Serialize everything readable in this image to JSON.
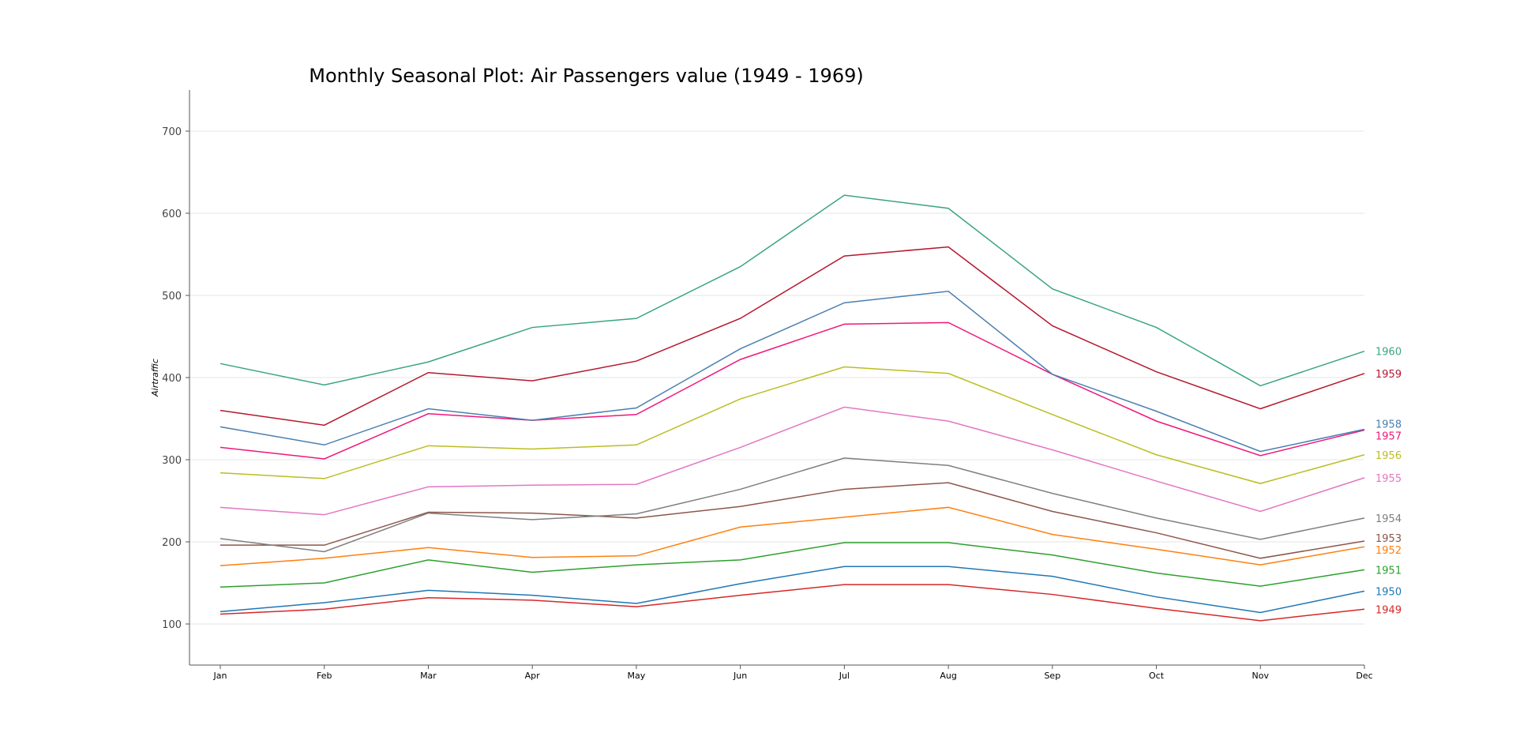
{
  "chart_data": {
    "type": "line",
    "title": "Monthly Seasonal Plot: Air Passengers value (1949 - 1969)",
    "xlabel": "",
    "ylabel": "Airtraffic",
    "categories": [
      "Jan",
      "Feb",
      "Mar",
      "Apr",
      "May",
      "Jun",
      "Jul",
      "Aug",
      "Sep",
      "Oct",
      "Nov",
      "Dec"
    ],
    "ylim": [
      50,
      750
    ],
    "yticks": [
      100,
      200,
      300,
      400,
      500,
      600,
      700
    ],
    "grid": "horizontal",
    "legend": "line-end labels on right",
    "series": [
      {
        "name": "1949",
        "color": "#d62728",
        "values": [
          112,
          118,
          132,
          129,
          121,
          135,
          148,
          148,
          136,
          119,
          104,
          118
        ]
      },
      {
        "name": "1950",
        "color": "#1f77b4",
        "values": [
          115,
          126,
          141,
          135,
          125,
          149,
          170,
          170,
          158,
          133,
          114,
          140
        ]
      },
      {
        "name": "1951",
        "color": "#2ca02c",
        "values": [
          145,
          150,
          178,
          163,
          172,
          178,
          199,
          199,
          184,
          162,
          146,
          166
        ]
      },
      {
        "name": "1952",
        "color": "#ff7f0e",
        "values": [
          171,
          180,
          193,
          181,
          183,
          218,
          230,
          242,
          209,
          191,
          172,
          194
        ]
      },
      {
        "name": "1953",
        "color": "#8c564b",
        "values": [
          196,
          196,
          236,
          235,
          229,
          243,
          264,
          272,
          237,
          211,
          180,
          201
        ]
      },
      {
        "name": "1954",
        "color": "#7f7f7f",
        "values": [
          204,
          188,
          235,
          227,
          234,
          264,
          302,
          293,
          259,
          229,
          203,
          229
        ]
      },
      {
        "name": "1955",
        "color": "#e377c2",
        "values": [
          242,
          233,
          267,
          269,
          270,
          315,
          364,
          347,
          312,
          274,
          237,
          278
        ]
      },
      {
        "name": "1956",
        "color": "#bcbd22",
        "values": [
          284,
          277,
          317,
          313,
          318,
          374,
          413,
          405,
          355,
          306,
          271,
          306
        ]
      },
      {
        "name": "1957",
        "color": "#f0177a",
        "values": [
          315,
          301,
          356,
          348,
          355,
          422,
          465,
          467,
          404,
          347,
          305,
          336
        ]
      },
      {
        "name": "1958",
        "color": "#4a7fb0",
        "values": [
          340,
          318,
          362,
          348,
          363,
          435,
          491,
          505,
          404,
          359,
          310,
          337
        ]
      },
      {
        "name": "1959",
        "color": "#b5172e",
        "values": [
          360,
          342,
          406,
          396,
          420,
          472,
          548,
          559,
          463,
          407,
          362,
          405
        ]
      },
      {
        "name": "1960",
        "color": "#3aa57e",
        "values": [
          417,
          391,
          419,
          461,
          472,
          535,
          622,
          606,
          508,
          461,
          390,
          432
        ]
      }
    ]
  }
}
